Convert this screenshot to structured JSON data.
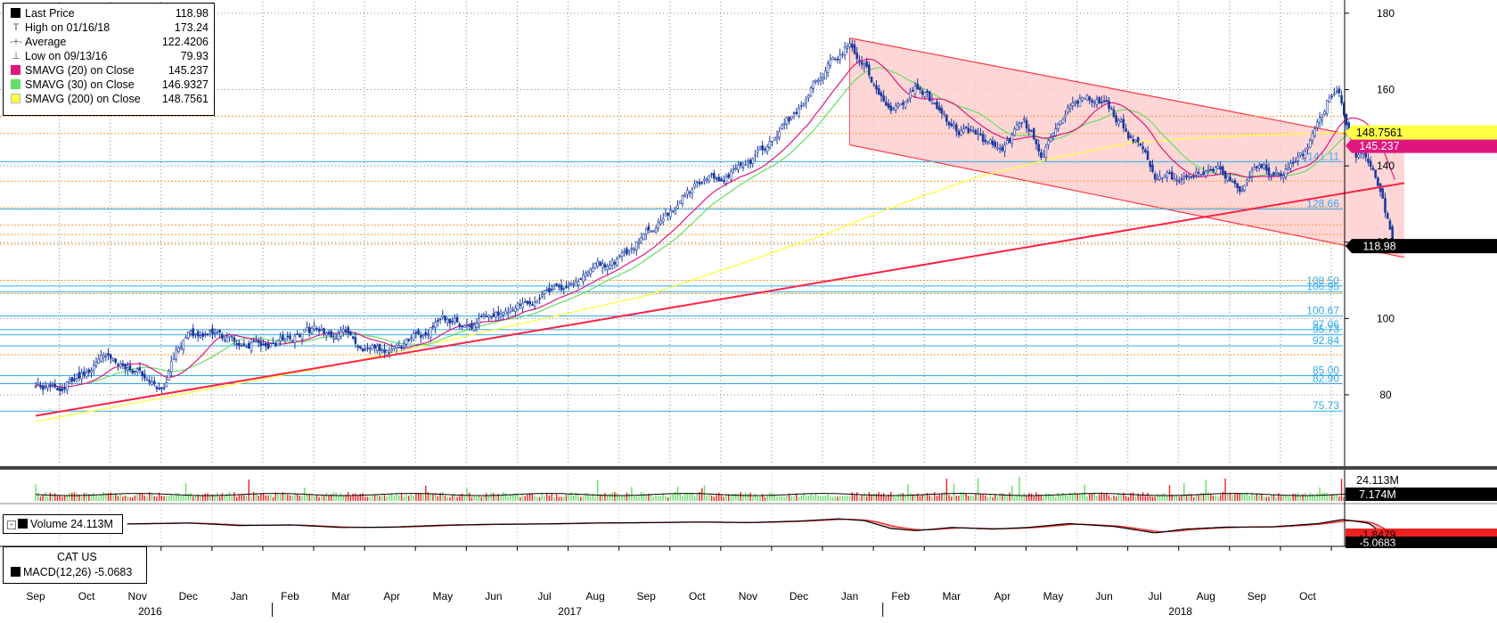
{
  "chart_data": {
    "type": "line",
    "ticker": "CAT US",
    "yaxis": {
      "range": [
        62,
        183
      ],
      "ticks": [
        "80",
        "100",
        "120",
        "140",
        "160",
        "180"
      ]
    },
    "xaxis": {
      "months": [
        "Sep",
        "Oct",
        "Nov",
        "Dec",
        "Jan",
        "Feb",
        "Mar",
        "Apr",
        "May",
        "Jun",
        "Jul",
        "Aug",
        "Sep",
        "Oct",
        "Nov",
        "Dec",
        "Jan",
        "Feb",
        "Mar",
        "Apr",
        "May",
        "Jun",
        "Jul",
        "Aug",
        "Sep",
        "Oct"
      ],
      "years": [
        "2016",
        "2017",
        "2018"
      ]
    },
    "legend": [
      {
        "label": "Last Price",
        "value": "118.98",
        "color": "#000000",
        "glyph": "square"
      },
      {
        "label": "High on 01/16/18",
        "value": "173.24",
        "glyph": "T"
      },
      {
        "label": "Average",
        "value": "122.4206",
        "glyph": "-+-"
      },
      {
        "label": "Low on 09/13/16",
        "value": "79.93",
        "glyph": "⊥"
      },
      {
        "label": "SMAVG (20)  on Close",
        "value": "145.237",
        "color": "#e0167f",
        "glyph": "square"
      },
      {
        "label": "SMAVG (30)  on Close",
        "value": "146.9327",
        "color": "#66dd66",
        "glyph": "square"
      },
      {
        "label": "SMAVG (200)  on Close",
        "value": "148.7561",
        "color": "#ffff44",
        "glyph": "square"
      }
    ],
    "series": [
      {
        "name": "Last Price",
        "color": "#1a3aa0",
        "anchors": [
          [
            0.0,
            83
          ],
          [
            0.5,
            82.5
          ],
          [
            1.0,
            86
          ],
          [
            1.3,
            90
          ],
          [
            1.7,
            89
          ],
          [
            2.0,
            86
          ],
          [
            2.3,
            83
          ],
          [
            2.5,
            82
          ],
          [
            2.7,
            90
          ],
          [
            3.0,
            96
          ],
          [
            3.5,
            96
          ],
          [
            4.0,
            94
          ],
          [
            4.5,
            93
          ],
          [
            5.0,
            95
          ],
          [
            5.5,
            97
          ],
          [
            6.0,
            96
          ],
          [
            6.5,
            93
          ],
          [
            7.0,
            92
          ],
          [
            7.5,
            95
          ],
          [
            8.0,
            100
          ],
          [
            8.5,
            98
          ],
          [
            9.0,
            101
          ],
          [
            9.5,
            103
          ],
          [
            10.0,
            107
          ],
          [
            10.5,
            109
          ],
          [
            11.0,
            114
          ],
          [
            11.5,
            115
          ],
          [
            12.0,
            122
          ],
          [
            12.5,
            128
          ],
          [
            13.0,
            135
          ],
          [
            13.5,
            137
          ],
          [
            14.0,
            140
          ],
          [
            14.5,
            147
          ],
          [
            15.0,
            155
          ],
          [
            15.5,
            165
          ],
          [
            16.0,
            173
          ],
          [
            16.3,
            166
          ],
          [
            16.6,
            158
          ],
          [
            17.0,
            155
          ],
          [
            17.3,
            162
          ],
          [
            17.6,
            157
          ],
          [
            18.0,
            150
          ],
          [
            18.5,
            148
          ],
          [
            19.0,
            144
          ],
          [
            19.4,
            152
          ],
          [
            19.8,
            143
          ],
          [
            20.0,
            150
          ],
          [
            20.4,
            157
          ],
          [
            21.0,
            157
          ],
          [
            21.5,
            148
          ],
          [
            21.8,
            143
          ],
          [
            22.0,
            137
          ],
          [
            22.5,
            136
          ],
          [
            23.0,
            140
          ],
          [
            23.3,
            139
          ],
          [
            23.7,
            135
          ],
          [
            24.0,
            139
          ],
          [
            24.5,
            138
          ],
          [
            25.0,
            143
          ],
          [
            25.4,
            157
          ],
          [
            25.6,
            158
          ],
          [
            25.8,
            150
          ],
          [
            25.95,
            144
          ],
          [
            26.3,
            141
          ],
          [
            26.5,
            129
          ],
          [
            26.7,
            118.98
          ]
        ]
      },
      {
        "name": "SMAVG (20)",
        "color": "#e0167f",
        "smooth": 20
      },
      {
        "name": "SMAVG (30)",
        "color": "#66dd66",
        "smooth": 30
      },
      {
        "name": "SMAVG (200)",
        "color": "#ffff44",
        "anchors": [
          [
            0,
            73
          ],
          [
            2,
            78
          ],
          [
            4,
            83
          ],
          [
            6,
            88
          ],
          [
            8,
            94
          ],
          [
            10,
            100
          ],
          [
            12,
            106
          ],
          [
            14,
            115
          ],
          [
            15.5,
            122
          ],
          [
            17,
            130
          ],
          [
            18.5,
            137
          ],
          [
            20,
            142
          ],
          [
            21.5,
            146
          ],
          [
            23,
            147.5
          ],
          [
            25,
            148.5
          ],
          [
            26.4,
            149
          ]
        ]
      }
    ],
    "price_tags": [
      {
        "label": "145.237",
        "value": 145.237,
        "bg": "#e0167f",
        "fg": "#ffffff"
      },
      {
        "label": "118.98",
        "value": 118.98,
        "bg": "#000000",
        "fg": "#ffffff"
      },
      {
        "label": "148.7561",
        "value": 148.7561,
        "bg": "#ffff44",
        "fg": "#000000"
      }
    ],
    "support_levels": [
      "141.11",
      "128.66",
      "108.50",
      "106.95",
      "100.67",
      "97.06",
      "95.73",
      "92.84",
      "85.00",
      "82.90",
      "75.73"
    ],
    "support_values": [
      141.11,
      128.66,
      108.5,
      106.95,
      100.67,
      97.06,
      95.73,
      92.84,
      85.0,
      82.9,
      75.73
    ],
    "resistance_dotted": [
      148.5,
      153,
      136,
      129,
      124.5,
      122,
      119.5,
      110,
      106.5,
      90.5,
      83
    ],
    "trendline": {
      "from": [
        0,
        74.5
      ],
      "to": [
        26.9,
        135.5
      ],
      "color": "#ff2244"
    },
    "channel": {
      "upper": {
        "from": [
          16.0,
          173.5
        ],
        "to": [
          26.9,
          145.5
        ]
      },
      "lower": {
        "from": [
          16.0,
          145.5
        ],
        "to": [
          26.9,
          116
        ]
      },
      "fill": "#ffcccc",
      "stroke": "#ff3344"
    },
    "volume": {
      "label": "Volume",
      "value": "24.113M",
      "avg_label": "7.174M",
      "up_color": "#66dd66",
      "down_color": "#ee2222"
    },
    "macd": {
      "label": "MACD(12,26)",
      "value": "-5.0683",
      "signal_label": "-1.8479",
      "anchors": [
        [
          1.8,
          0.6
        ],
        [
          3,
          0.9
        ],
        [
          4,
          0.1
        ],
        [
          5,
          0.3
        ],
        [
          6,
          -0.5
        ],
        [
          7,
          -0.4
        ],
        [
          8,
          0.2
        ],
        [
          9,
          0.5
        ],
        [
          10,
          0.6
        ],
        [
          11,
          0.9
        ],
        [
          12,
          1.0
        ],
        [
          13,
          1.2
        ],
        [
          14,
          1.0
        ],
        [
          15,
          1.5
        ],
        [
          15.8,
          2.2
        ],
        [
          16.3,
          1.6
        ],
        [
          16.8,
          -0.8
        ],
        [
          17.3,
          -1.5
        ],
        [
          18,
          -0.5
        ],
        [
          18.8,
          -1.0
        ],
        [
          19.5,
          -0.5
        ],
        [
          20.3,
          0.7
        ],
        [
          21.2,
          -0.2
        ],
        [
          22,
          -2.2
        ],
        [
          22.6,
          -1.0
        ],
        [
          23.4,
          -0.4
        ],
        [
          24.3,
          -0.3
        ],
        [
          25.2,
          0.7
        ],
        [
          25.7,
          2.0
        ],
        [
          26.2,
          0.8
        ],
        [
          26.7,
          -5.0
        ]
      ]
    }
  }
}
